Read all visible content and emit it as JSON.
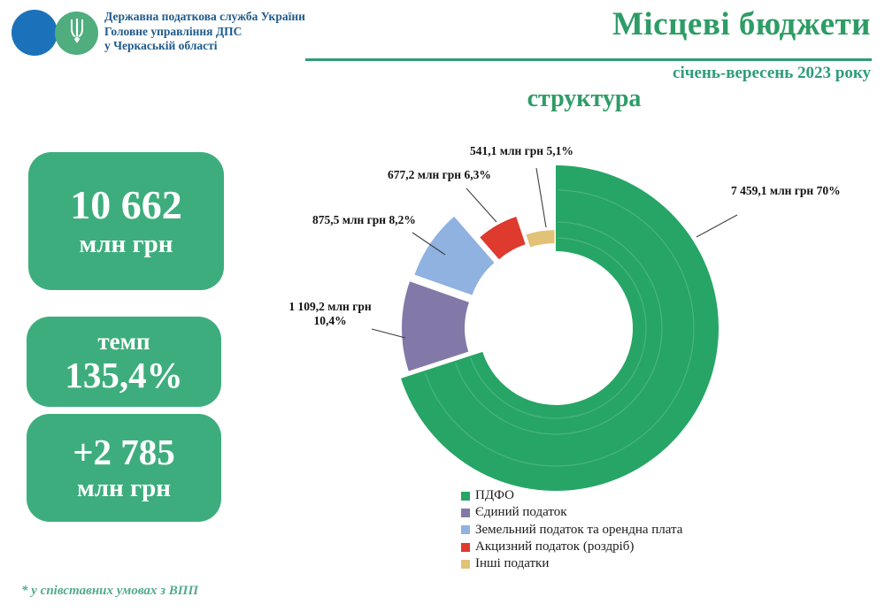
{
  "header": {
    "org_lines": [
      "Державна податкова служба України",
      "Головне управління ДПС",
      "у Черкаській області"
    ],
    "title": "Місцеві бюджети",
    "subtitle": "січень-вересень 2023 року",
    "section_title": "структура"
  },
  "kpi_boxes": [
    {
      "line1": "10 662",
      "line2": "млн грн"
    },
    {
      "line1": "темп",
      "line2": "135,4%"
    },
    {
      "line1": "+2 785",
      "line2": "млн грн"
    }
  ],
  "footnote": "* у співставних умовах з ВПП",
  "colors": {
    "accent_green": "#2E9C66",
    "teal_green": "#2E9C7A",
    "box_green": "#3EAD7D",
    "header_text_blue": "#1E5A8C",
    "logo_blue": "#1B72BB",
    "logo_green": "#4FAD7E",
    "footnote_green": "#52AA8B"
  },
  "chart_data": {
    "type": "pie",
    "subtype": "doughnut-exploded",
    "title": "структура",
    "period": "січень-вересень 2023 року",
    "unit": "млн грн",
    "total_label": "10 662 млн грн",
    "legend_position": "bottom",
    "slices": [
      {
        "label": "ПДФО",
        "value": 7459.1,
        "pct": 70,
        "color": "#27A566",
        "data_label": "7 459,1 млн грн 70%"
      },
      {
        "label": "Єдиний податок",
        "value": 1109.2,
        "pct": 10.4,
        "color": "#8379A8",
        "data_label": "1 109,2 млн грн 10,4%"
      },
      {
        "label": "Земельний податок та орендна плата",
        "value": 875.5,
        "pct": 8.2,
        "color": "#8FB2E0",
        "data_label": "875,5 млн грн 8,2%"
      },
      {
        "label": "Акцизний податок (роздріб)",
        "value": 677.2,
        "pct": 6.3,
        "color": "#DE3A2E",
        "data_label": "677,2 млн грн 6,3%"
      },
      {
        "label": "Інші податки",
        "value": 541.1,
        "pct": 5.1,
        "color": "#E2C277",
        "data_label": "541,1 млн грн 5,1%"
      }
    ]
  }
}
